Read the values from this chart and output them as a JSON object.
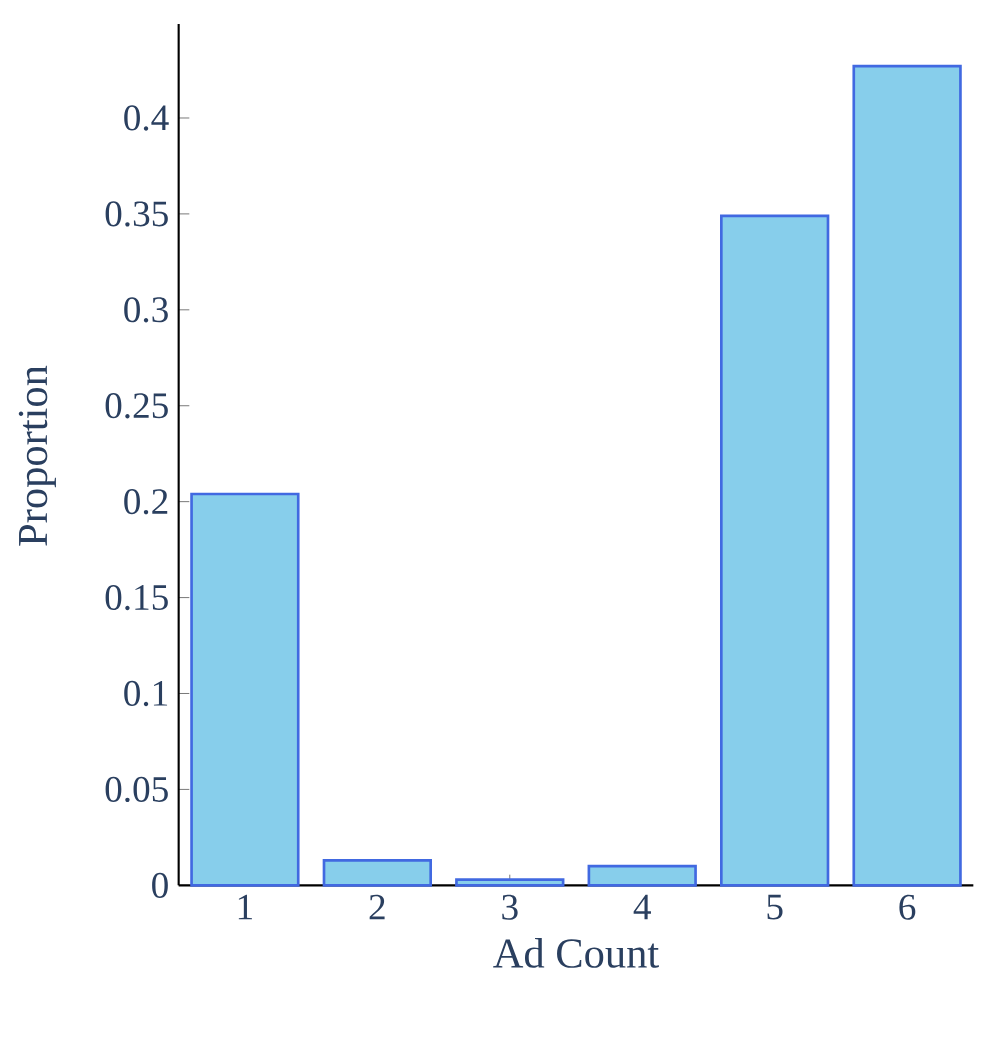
{
  "chart_data": {
    "type": "bar",
    "xlabel": "Ad Count",
    "ylabel": "Proportion",
    "categories": [
      "1",
      "2",
      "3",
      "4",
      "5",
      "6"
    ],
    "values": [
      0.204,
      0.013,
      0.003,
      0.01,
      0.349,
      0.427
    ],
    "color": "#87ceeb",
    "ylim": [
      0,
      0.449
    ],
    "yticks": [
      0,
      0.05,
      0.1,
      0.15,
      0.2,
      0.25,
      0.3,
      0.35,
      0.4
    ],
    "grid": false
  }
}
